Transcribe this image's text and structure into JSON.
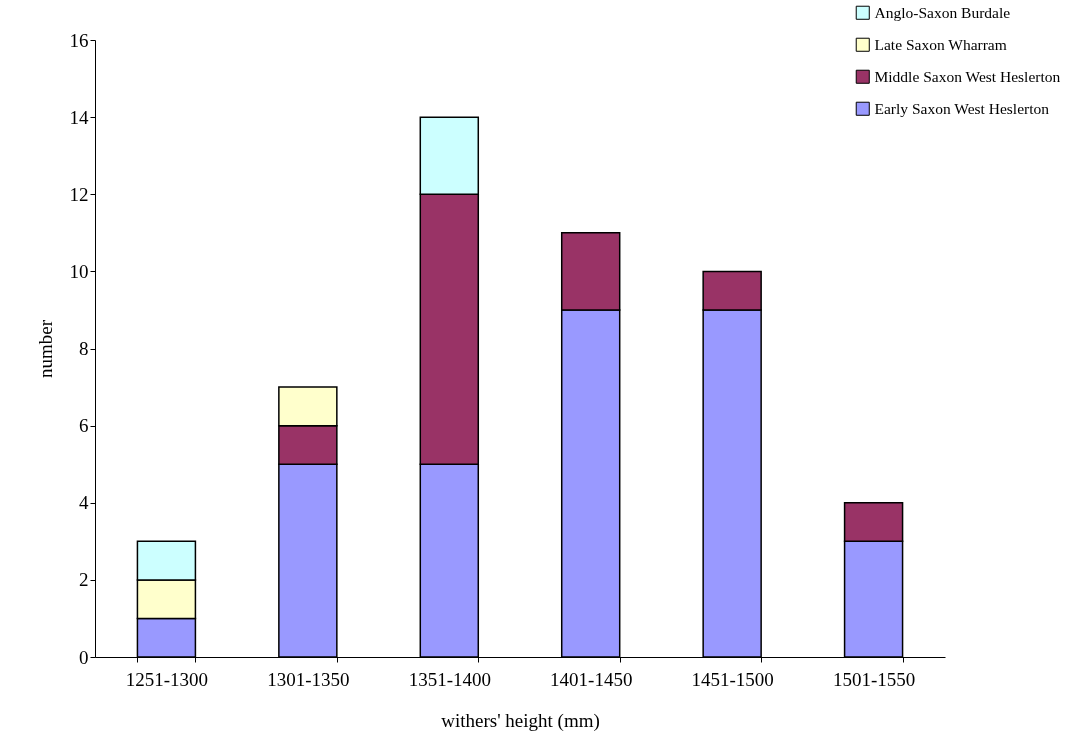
{
  "chart_data": {
    "type": "bar",
    "stacked": true,
    "xlabel": "withers' height (mm)",
    "ylabel": "number",
    "categories": [
      "1251-1300",
      "1301-1350",
      "1351-1400",
      "1401-1450",
      "1451-1500",
      "1501-1550"
    ],
    "series": [
      {
        "name": "Early Saxon West Heslerton",
        "color": "#9999ff",
        "values": [
          1,
          5,
          5,
          9,
          9,
          3
        ]
      },
      {
        "name": "Middle Saxon West Heslerton",
        "color": "#993366",
        "values": [
          null,
          1,
          7,
          2,
          1,
          1
        ]
      },
      {
        "name": "Late Saxon Wharram",
        "color": "#ffffcc",
        "values": [
          1,
          1,
          null,
          null,
          null,
          null
        ]
      },
      {
        "name": "Anglo-Saxon Burdale",
        "color": "#ccffff",
        "values": [
          1,
          null,
          2,
          null,
          null,
          null
        ]
      }
    ],
    "ylim": [
      0,
      16
    ],
    "yticks": [
      0,
      2,
      4,
      6,
      8,
      10,
      12,
      14,
      16
    ],
    "grid": false,
    "legend": "top right"
  }
}
